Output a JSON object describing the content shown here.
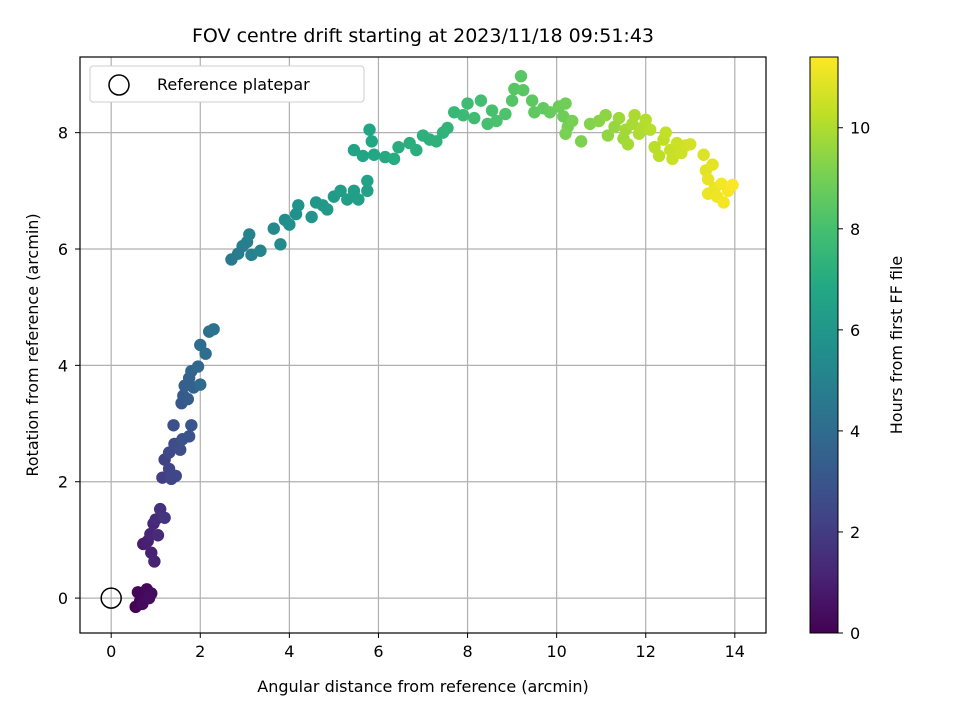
{
  "chart_data": {
    "type": "scatter",
    "title": "FOV centre drift starting at 2023/11/18 09:51:43",
    "xlabel": "Angular distance from reference (arcmin)",
    "ylabel": "Rotation from reference (arcmin)",
    "xlim": [
      -0.7,
      14.7
    ],
    "ylim": [
      -0.6,
      9.3
    ],
    "xticks": [
      "0",
      "2",
      "4",
      "6",
      "8",
      "10",
      "12",
      "14"
    ],
    "yticks": [
      "0",
      "2",
      "4",
      "6",
      "8"
    ],
    "grid": true,
    "legend": {
      "location": "upper-left",
      "label": "Reference platepar"
    },
    "reference_point": {
      "x": 0,
      "y": 0
    },
    "colorbar": {
      "label": "Hours from first FF file",
      "colormap": "viridis",
      "range": [
        0,
        11.4
      ],
      "ticks": [
        "0",
        "2",
        "4",
        "6",
        "8",
        "10"
      ]
    },
    "points": [
      {
        "x": 0.55,
        "y": -0.15,
        "t": 0.05
      },
      {
        "x": 0.65,
        "y": -0.05,
        "t": 0.1
      },
      {
        "x": 0.6,
        "y": 0.1,
        "t": 0.15
      },
      {
        "x": 0.75,
        "y": 0.05,
        "t": 0.2
      },
      {
        "x": 0.8,
        "y": 0.15,
        "t": 0.25
      },
      {
        "x": 0.7,
        "y": -0.1,
        "t": 0.3
      },
      {
        "x": 0.9,
        "y": 0.08,
        "t": 0.35
      },
      {
        "x": 0.85,
        "y": 0.0,
        "t": 0.4
      },
      {
        "x": 0.72,
        "y": 0.93,
        "t": 0.9
      },
      {
        "x": 0.82,
        "y": 0.98,
        "t": 1.0
      },
      {
        "x": 0.9,
        "y": 0.78,
        "t": 1.05
      },
      {
        "x": 0.97,
        "y": 0.63,
        "t": 1.1
      },
      {
        "x": 0.88,
        "y": 1.1,
        "t": 1.2
      },
      {
        "x": 0.95,
        "y": 1.28,
        "t": 1.3
      },
      {
        "x": 1.05,
        "y": 1.08,
        "t": 1.35
      },
      {
        "x": 1.0,
        "y": 1.35,
        "t": 1.45
      },
      {
        "x": 1.1,
        "y": 1.53,
        "t": 1.6
      },
      {
        "x": 1.2,
        "y": 1.38,
        "t": 1.7
      },
      {
        "x": 1.15,
        "y": 2.07,
        "t": 2.1
      },
      {
        "x": 1.2,
        "y": 2.38,
        "t": 2.2
      },
      {
        "x": 1.3,
        "y": 2.22,
        "t": 2.3
      },
      {
        "x": 1.35,
        "y": 2.05,
        "t": 2.35
      },
      {
        "x": 1.45,
        "y": 2.1,
        "t": 2.4
      },
      {
        "x": 1.3,
        "y": 2.5,
        "t": 2.5
      },
      {
        "x": 1.42,
        "y": 2.65,
        "t": 2.6
      },
      {
        "x": 1.55,
        "y": 2.55,
        "t": 2.7
      },
      {
        "x": 1.4,
        "y": 2.97,
        "t": 2.8
      },
      {
        "x": 1.6,
        "y": 2.73,
        "t": 2.85
      },
      {
        "x": 1.75,
        "y": 2.78,
        "t": 2.9
      },
      {
        "x": 1.8,
        "y": 2.97,
        "t": 3.0
      },
      {
        "x": 1.58,
        "y": 3.35,
        "t": 3.1
      },
      {
        "x": 1.62,
        "y": 3.48,
        "t": 3.2
      },
      {
        "x": 1.72,
        "y": 3.42,
        "t": 3.3
      },
      {
        "x": 1.65,
        "y": 3.65,
        "t": 3.4
      },
      {
        "x": 1.75,
        "y": 3.78,
        "t": 3.5
      },
      {
        "x": 1.85,
        "y": 3.62,
        "t": 3.6
      },
      {
        "x": 1.8,
        "y": 3.9,
        "t": 3.7
      },
      {
        "x": 1.95,
        "y": 3.98,
        "t": 3.8
      },
      {
        "x": 2.0,
        "y": 3.67,
        "t": 3.9
      },
      {
        "x": 2.0,
        "y": 4.35,
        "t": 4.0
      },
      {
        "x": 2.12,
        "y": 4.2,
        "t": 4.1
      },
      {
        "x": 2.2,
        "y": 4.58,
        "t": 4.2
      },
      {
        "x": 2.3,
        "y": 4.62,
        "t": 4.3
      },
      {
        "x": 2.7,
        "y": 5.82,
        "t": 4.6
      },
      {
        "x": 2.85,
        "y": 5.92,
        "t": 4.7
      },
      {
        "x": 2.95,
        "y": 6.05,
        "t": 4.8
      },
      {
        "x": 3.05,
        "y": 6.12,
        "t": 4.9
      },
      {
        "x": 3.15,
        "y": 5.9,
        "t": 5.0
      },
      {
        "x": 3.1,
        "y": 6.25,
        "t": 5.05
      },
      {
        "x": 3.35,
        "y": 5.97,
        "t": 5.1
      },
      {
        "x": 3.65,
        "y": 6.35,
        "t": 5.3
      },
      {
        "x": 3.8,
        "y": 6.08,
        "t": 5.4
      },
      {
        "x": 3.9,
        "y": 6.5,
        "t": 5.5
      },
      {
        "x": 4.0,
        "y": 6.42,
        "t": 5.6
      },
      {
        "x": 4.15,
        "y": 6.6,
        "t": 5.7
      },
      {
        "x": 4.2,
        "y": 6.75,
        "t": 5.8
      },
      {
        "x": 4.5,
        "y": 6.55,
        "t": 5.9
      },
      {
        "x": 4.6,
        "y": 6.8,
        "t": 6.0
      },
      {
        "x": 4.75,
        "y": 6.75,
        "t": 6.1
      },
      {
        "x": 4.85,
        "y": 6.68,
        "t": 6.15
      },
      {
        "x": 5.0,
        "y": 6.9,
        "t": 6.2
      },
      {
        "x": 5.15,
        "y": 7.0,
        "t": 6.3
      },
      {
        "x": 5.3,
        "y": 6.85,
        "t": 6.35
      },
      {
        "x": 5.45,
        "y": 7.0,
        "t": 6.4
      },
      {
        "x": 5.55,
        "y": 6.85,
        "t": 6.45
      },
      {
        "x": 5.75,
        "y": 7.0,
        "t": 6.5
      },
      {
        "x": 5.75,
        "y": 7.17,
        "t": 6.55
      },
      {
        "x": 5.45,
        "y": 7.7,
        "t": 6.6
      },
      {
        "x": 5.65,
        "y": 7.6,
        "t": 6.65
      },
      {
        "x": 5.8,
        "y": 8.05,
        "t": 6.7
      },
      {
        "x": 5.85,
        "y": 7.85,
        "t": 6.75
      },
      {
        "x": 5.9,
        "y": 7.62,
        "t": 6.8
      },
      {
        "x": 6.15,
        "y": 7.58,
        "t": 6.9
      },
      {
        "x": 6.35,
        "y": 7.55,
        "t": 7.0
      },
      {
        "x": 6.45,
        "y": 7.75,
        "t": 7.05
      },
      {
        "x": 6.7,
        "y": 7.82,
        "t": 7.1
      },
      {
        "x": 6.85,
        "y": 7.7,
        "t": 7.15
      },
      {
        "x": 7.0,
        "y": 7.95,
        "t": 7.2
      },
      {
        "x": 7.15,
        "y": 7.88,
        "t": 7.25
      },
      {
        "x": 7.3,
        "y": 7.85,
        "t": 7.3
      },
      {
        "x": 7.45,
        "y": 8.0,
        "t": 7.35
      },
      {
        "x": 7.55,
        "y": 8.08,
        "t": 7.4
      },
      {
        "x": 7.7,
        "y": 8.35,
        "t": 7.6
      },
      {
        "x": 7.9,
        "y": 8.3,
        "t": 7.7
      },
      {
        "x": 8.0,
        "y": 8.5,
        "t": 7.8
      },
      {
        "x": 8.15,
        "y": 8.25,
        "t": 7.85
      },
      {
        "x": 8.3,
        "y": 8.55,
        "t": 7.9
      },
      {
        "x": 8.45,
        "y": 8.15,
        "t": 8.0
      },
      {
        "x": 8.55,
        "y": 8.38,
        "t": 8.05
      },
      {
        "x": 8.65,
        "y": 8.2,
        "t": 8.1
      },
      {
        "x": 8.85,
        "y": 8.32,
        "t": 8.2
      },
      {
        "x": 9.0,
        "y": 8.55,
        "t": 8.3
      },
      {
        "x": 9.05,
        "y": 8.75,
        "t": 8.35
      },
      {
        "x": 9.2,
        "y": 8.97,
        "t": 8.4
      },
      {
        "x": 9.25,
        "y": 8.73,
        "t": 8.45
      },
      {
        "x": 9.45,
        "y": 8.55,
        "t": 8.5
      },
      {
        "x": 9.5,
        "y": 8.35,
        "t": 8.55
      },
      {
        "x": 9.7,
        "y": 8.42,
        "t": 8.6
      },
      {
        "x": 9.85,
        "y": 8.35,
        "t": 8.7
      },
      {
        "x": 10.05,
        "y": 8.45,
        "t": 8.8
      },
      {
        "x": 10.15,
        "y": 8.28,
        "t": 8.85
      },
      {
        "x": 10.2,
        "y": 8.5,
        "t": 8.9
      },
      {
        "x": 10.25,
        "y": 8.1,
        "t": 9.0
      },
      {
        "x": 10.35,
        "y": 8.2,
        "t": 9.05
      },
      {
        "x": 10.2,
        "y": 7.98,
        "t": 9.1
      },
      {
        "x": 10.55,
        "y": 7.85,
        "t": 9.15
      },
      {
        "x": 10.75,
        "y": 8.15,
        "t": 9.25
      },
      {
        "x": 10.95,
        "y": 8.2,
        "t": 9.35
      },
      {
        "x": 11.1,
        "y": 8.3,
        "t": 9.45
      },
      {
        "x": 11.15,
        "y": 7.95,
        "t": 9.5
      },
      {
        "x": 11.3,
        "y": 8.1,
        "t": 9.6
      },
      {
        "x": 11.4,
        "y": 8.25,
        "t": 9.7
      },
      {
        "x": 11.5,
        "y": 7.9,
        "t": 9.75
      },
      {
        "x": 11.55,
        "y": 8.05,
        "t": 9.8
      },
      {
        "x": 11.6,
        "y": 7.8,
        "t": 9.85
      },
      {
        "x": 11.7,
        "y": 8.15,
        "t": 9.9
      },
      {
        "x": 11.75,
        "y": 8.3,
        "t": 9.95
      },
      {
        "x": 11.85,
        "y": 7.98,
        "t": 10.0
      },
      {
        "x": 11.95,
        "y": 8.1,
        "t": 10.05
      },
      {
        "x": 12.0,
        "y": 8.22,
        "t": 10.1
      },
      {
        "x": 12.1,
        "y": 8.05,
        "t": 10.15
      },
      {
        "x": 12.2,
        "y": 7.75,
        "t": 10.2
      },
      {
        "x": 12.3,
        "y": 7.6,
        "t": 10.25
      },
      {
        "x": 12.4,
        "y": 7.88,
        "t": 10.3
      },
      {
        "x": 12.45,
        "y": 8.0,
        "t": 10.35
      },
      {
        "x": 12.55,
        "y": 7.7,
        "t": 10.4
      },
      {
        "x": 12.6,
        "y": 7.55,
        "t": 10.45
      },
      {
        "x": 12.7,
        "y": 7.82,
        "t": 10.5
      },
      {
        "x": 12.8,
        "y": 7.65,
        "t": 10.55
      },
      {
        "x": 12.9,
        "y": 7.78,
        "t": 10.6
      },
      {
        "x": 13.0,
        "y": 7.8,
        "t": 10.65
      },
      {
        "x": 13.3,
        "y": 7.62,
        "t": 10.8
      },
      {
        "x": 13.35,
        "y": 7.35,
        "t": 10.9
      },
      {
        "x": 13.5,
        "y": 7.45,
        "t": 10.95
      },
      {
        "x": 13.4,
        "y": 7.2,
        "t": 11.0
      },
      {
        "x": 13.55,
        "y": 7.05,
        "t": 11.05
      },
      {
        "x": 13.4,
        "y": 6.95,
        "t": 11.1
      },
      {
        "x": 13.6,
        "y": 6.9,
        "t": 11.15
      },
      {
        "x": 13.7,
        "y": 7.12,
        "t": 11.2
      },
      {
        "x": 13.75,
        "y": 6.8,
        "t": 11.25
      },
      {
        "x": 13.85,
        "y": 7.0,
        "t": 11.3
      },
      {
        "x": 13.95,
        "y": 7.1,
        "t": 11.35
      }
    ]
  }
}
